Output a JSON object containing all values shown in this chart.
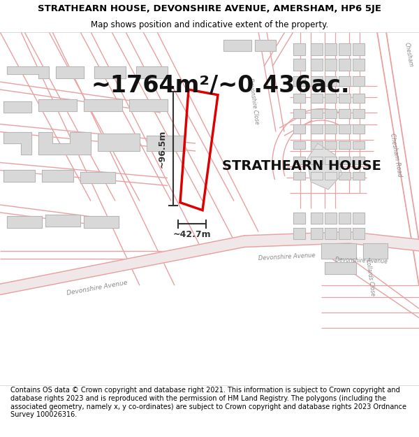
{
  "title_line1": "STRATHEARN HOUSE, DEVONSHIRE AVENUE, AMERSHAM, HP6 5JE",
  "title_line2": "Map shows position and indicative extent of the property.",
  "area_text": "~1764m²/~0.436ac.",
  "property_label": "STRATHEARN HOUSE",
  "dim_width": "~42.7m",
  "dim_height": "~96.5m",
  "footer_text": "Contains OS data © Crown copyright and database right 2021. This information is subject to Crown copyright and database rights 2023 and is reproduced with the permission of HM Land Registry. The polygons (including the associated geometry, namely x, y co-ordinates) are subject to Crown copyright and database rights 2023 Ordnance Survey 100026316.",
  "map_bg": "#f7f0f0",
  "road_color": "#e8a0a0",
  "road_outline_color": "#d08080",
  "building_fill": "#d8d8d8",
  "building_edge": "#b0b0b0",
  "property_outline_color": "#dd0000",
  "dim_line_color": "#333333",
  "label_color": "#888888",
  "title_fontsize": 9.5,
  "subtitle_fontsize": 8.5,
  "area_fontsize": 24,
  "label_fontsize": 14,
  "footer_fontsize": 7.0,
  "road_lw": 1.0
}
